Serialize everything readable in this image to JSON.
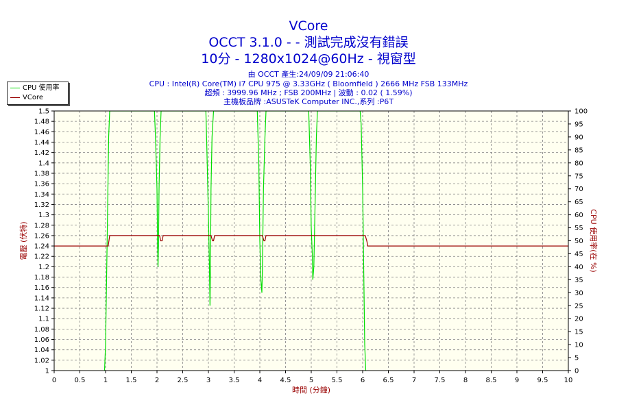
{
  "header": {
    "title_line1": "VCore",
    "title_line2": "OCCT 3.1.0 -  - 測試完成沒有錯誤",
    "title_line3": "10分 - 1280x1024@60Hz - 視窗型",
    "info_line1": "由 OCCT 產生:24/09/09 21:06:40",
    "info_line2": "CPU : Intel(R) Core(TM) i7 CPU 975 @ 3.33GHz ( Bloomfield ) 2666 MHz FSB 133MHz",
    "info_line3": "超頻 : 3999.96 MHz ; FSB 200MHz | 波動 : 0.02 ( 1.59%)",
    "info_line4": "主機板品牌 :ASUSTeK Computer INC.,系列 :P6T"
  },
  "colors": {
    "title": "#0000cc",
    "axis_left_label": "#990000",
    "cpu_series": "#00dd00",
    "vcore_series": "#990000",
    "plot_bg": "#fffff0",
    "grid": "#808080"
  },
  "chart_data": {
    "type": "line",
    "title": "VCore",
    "xlabel": "時間 (分鐘)",
    "ylabel_left": "電壓 (伏特)",
    "ylabel_right": "CPU 使用率(在 %)",
    "xlim": [
      0,
      10
    ],
    "ylim_left": [
      1,
      1.5
    ],
    "ylim_right": [
      0,
      100
    ],
    "x_ticks": [
      "0",
      "0.5",
      "1",
      "1.5",
      "2",
      "2.5",
      "3",
      "3.5",
      "4",
      "4.5",
      "5",
      "5.5",
      "6",
      "6.5",
      "7",
      "7.5",
      "8",
      "8.5",
      "9",
      "9.5",
      "10"
    ],
    "y_left_ticks": [
      "1",
      "1.02",
      "1.04",
      "1.06",
      "1.08",
      "1.1",
      "1.12",
      "1.14",
      "1.16",
      "1.18",
      "1.2",
      "1.22",
      "1.24",
      "1.26",
      "1.28",
      "1.3",
      "1.32",
      "1.34",
      "1.36",
      "1.38",
      "1.4",
      "1.42",
      "1.44",
      "1.46",
      "1.48",
      "1.5"
    ],
    "y_right_ticks": [
      "0",
      "5",
      "10",
      "15",
      "20",
      "25",
      "30",
      "35",
      "40",
      "45",
      "50",
      "55",
      "60",
      "65",
      "70",
      "75",
      "80",
      "85",
      "90",
      "95",
      "100"
    ],
    "grid": true,
    "legend_position": "top-left",
    "series": [
      {
        "name": "CPU 使用率",
        "axis": "right",
        "x": [
          0.98,
          1.0,
          1.03,
          1.06,
          1.08,
          1.1,
          1.12,
          1.95,
          1.97,
          2.0,
          2.01,
          2.02,
          2.03,
          2.04,
          2.06,
          2.08,
          2.1,
          2.12,
          2.95,
          2.97,
          3.0,
          3.02,
          3.03,
          3.04,
          3.05,
          3.07,
          3.1,
          3.13,
          3.15,
          3.95,
          3.98,
          4.0,
          4.02,
          4.04,
          4.05,
          4.07,
          4.1,
          4.12,
          4.15,
          4.95,
          4.98,
          5.0,
          5.02,
          5.03,
          5.05,
          5.07,
          5.1,
          5.12,
          5.15,
          5.95,
          5.97,
          6.0,
          6.02,
          6.04,
          6.06
        ],
        "y": [
          0,
          10,
          50,
          90,
          100,
          100,
          100,
          100,
          90,
          70,
          50,
          40,
          50,
          70,
          90,
          100,
          100,
          100,
          100,
          85,
          60,
          40,
          25,
          40,
          70,
          90,
          100,
          100,
          100,
          100,
          80,
          50,
          35,
          30,
          40,
          70,
          90,
          100,
          100,
          100,
          80,
          55,
          45,
          35,
          40,
          60,
          90,
          100,
          100,
          100,
          95,
          70,
          40,
          10,
          0
        ]
      },
      {
        "name": "VCore",
        "axis": "left",
        "x": [
          0,
          1.05,
          1.08,
          2.05,
          2.07,
          2.1,
          2.12,
          3.05,
          3.08,
          3.1,
          3.12,
          4.05,
          4.08,
          4.1,
          4.12,
          5.05,
          5.08,
          5.1,
          6.05,
          6.08,
          6.1,
          10
        ],
        "y": [
          1.24,
          1.24,
          1.26,
          1.26,
          1.25,
          1.25,
          1.26,
          1.26,
          1.25,
          1.25,
          1.26,
          1.26,
          1.25,
          1.25,
          1.26,
          1.26,
          1.26,
          1.26,
          1.26,
          1.25,
          1.24,
          1.24
        ]
      }
    ]
  }
}
